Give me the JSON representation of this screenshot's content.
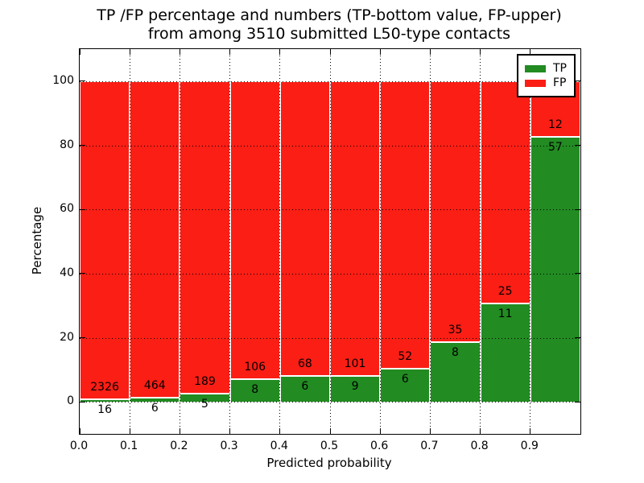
{
  "chart_data": {
    "type": "bar",
    "stacked": true,
    "title_line1": "TP /FP percentage and numbers (TP-bottom value, FP-upper)",
    "title_line2": "from among 3510 submitted L50-type contacts",
    "xlabel": "Predicted probability",
    "ylabel": "Percentage",
    "total_submitted": 3510,
    "bin_width": 0.1,
    "categories": [
      "0.0",
      "0.1",
      "0.2",
      "0.3",
      "0.4",
      "0.5",
      "0.6",
      "0.7",
      "0.8",
      "0.9"
    ],
    "series": [
      {
        "name": "TP",
        "color": "#228b22",
        "counts": [
          16,
          6,
          5,
          8,
          6,
          9,
          6,
          8,
          11,
          57
        ],
        "percent": [
          0.68,
          1.28,
          2.58,
          7.02,
          8.11,
          8.18,
          10.34,
          18.6,
          30.56,
          82.61
        ]
      },
      {
        "name": "FP",
        "color": "#fa1e15",
        "counts": [
          2326,
          464,
          189,
          106,
          68,
          101,
          52,
          35,
          25,
          12
        ],
        "percent": [
          99.32,
          98.72,
          97.42,
          92.98,
          91.89,
          91.82,
          89.66,
          81.4,
          69.44,
          17.39
        ]
      }
    ],
    "x_tick_labels": [
      "0.0",
      "0.1",
      "0.2",
      "0.3",
      "0.4",
      "0.5",
      "0.6",
      "0.7",
      "0.8",
      "0.9"
    ],
    "y_tick_values": [
      0,
      20,
      40,
      60,
      80,
      100
    ],
    "ylim": [
      -10,
      110
    ],
    "xlim": [
      0,
      1
    ],
    "grid": true,
    "legend": {
      "position": "upper right",
      "entries": [
        {
          "label": "TP",
          "color": "#228b22"
        },
        {
          "label": "FP",
          "color": "#fa1e15"
        }
      ]
    }
  }
}
